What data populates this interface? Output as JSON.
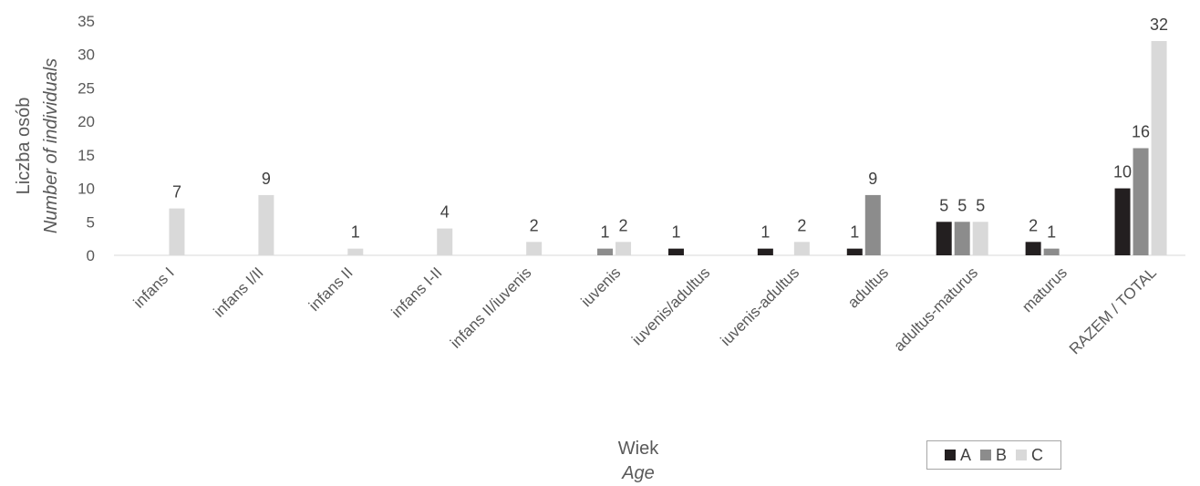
{
  "chart_data": {
    "type": "bar",
    "categories": [
      "infans I",
      "infans I/II",
      "infans II",
      "infans I-II",
      "infans II/iuvenis",
      "iuvenis",
      "iuvenis/adultus",
      "iuvenis-adultus",
      "adultus",
      "adultus-maturus",
      "maturus",
      "RAZEM / TOTAL"
    ],
    "series": [
      {
        "name": "A",
        "color": "#231f20",
        "values": [
          0,
          0,
          0,
          0,
          0,
          0,
          1,
          1,
          1,
          5,
          2,
          10
        ],
        "labels": [
          null,
          null,
          null,
          null,
          null,
          null,
          "1",
          "1",
          "1",
          "5",
          "2",
          "10"
        ]
      },
      {
        "name": "B",
        "color": "#8c8c8c",
        "values": [
          0,
          0,
          0,
          0,
          0,
          1,
          0,
          0,
          9,
          5,
          1,
          16
        ],
        "labels": [
          null,
          null,
          null,
          null,
          null,
          "1",
          null,
          null,
          "9",
          "5",
          "1",
          "16"
        ]
      },
      {
        "name": "C",
        "color": "#d9d9d9",
        "values": [
          7,
          9,
          1,
          4,
          2,
          2,
          0,
          2,
          0,
          5,
          0,
          32
        ],
        "labels": [
          "7",
          "9",
          "1",
          "4",
          "2",
          "2",
          null,
          "2",
          null,
          "5",
          null,
          "32"
        ]
      }
    ],
    "ylim": [
      0,
      35
    ],
    "yticks": [
      "0",
      "5",
      "10",
      "15",
      "20",
      "25",
      "30",
      "35"
    ],
    "ylabel": "Liczba osób",
    "ylabel_en": "Number of individuals",
    "xlabel": "Wiek",
    "xlabel_en": "Age",
    "grid": false,
    "legend_position": "bottom-right"
  }
}
